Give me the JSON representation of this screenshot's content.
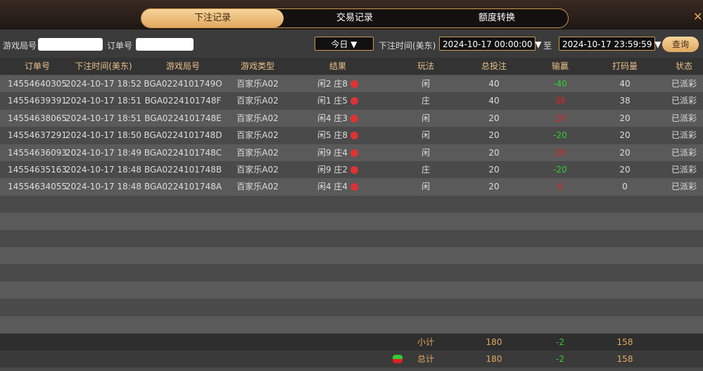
{
  "tabs": [
    "下注记录",
    "交易记录",
    "额度转换"
  ],
  "filters": {
    "round_label": "游戏局号",
    "order_label": "订单号",
    "period": "今日",
    "time_label": "下注时间(美东)",
    "start": "2024-10-17 00:00:00",
    "to": "至",
    "end": "2024-10-17 23:59:59",
    "search": "查询"
  },
  "table": {
    "header": [
      "订单号",
      "下注时间(美东)",
      "游戏局号",
      "游戏类型",
      "结果",
      "玩法",
      "总投注",
      "输赢",
      "打码量",
      "状态"
    ],
    "rows": [
      [
        "14554640305",
        "2024-10-17 18:52",
        "BGA0224101749O",
        "百家乐A02",
        "闲2 庄8",
        "闲",
        40,
        -40,
        40,
        "已派彩"
      ],
      [
        "14554639391",
        "2024-10-17 18:51",
        "BGA0224101748F",
        "百家乐A02",
        "闲1 庄5",
        "庄",
        40,
        38,
        38,
        "已派彩"
      ],
      [
        "14554638065",
        "2024-10-17 18:51",
        "BGA0224101748E",
        "百家乐A02",
        "闲4 庄3",
        "闲",
        20,
        20,
        20,
        "已派彩"
      ],
      [
        "14554637291",
        "2024-10-17 18:50",
        "BGA0224101748D",
        "百家乐A02",
        "闲5 庄8",
        "闲",
        20,
        -20,
        20,
        "已派彩"
      ],
      [
        "14554636093",
        "2024-10-17 18:49",
        "BGA0224101748C",
        "百家乐A02",
        "闲9 庄4",
        "闲",
        20,
        20,
        20,
        "已派彩"
      ],
      [
        "14554635163",
        "2024-10-17 18:48",
        "BGA0224101748B",
        "百家乐A02",
        "闲9 庄2",
        "庄",
        20,
        -20,
        20,
        "已派彩"
      ],
      [
        "14554634055",
        "2024-10-17 18:48",
        "BGA0224101748A",
        "百家乐A02",
        "闲4 庄4",
        "闲",
        20,
        0,
        0,
        "已派彩"
      ]
    ],
    "subtotal": {
      "label": "小计",
      "bet": 180,
      "win": -2,
      "turnover": 158
    },
    "total": {
      "label": "总计",
      "bet": 180,
      "win": -2,
      "turnover": 158
    }
  }
}
